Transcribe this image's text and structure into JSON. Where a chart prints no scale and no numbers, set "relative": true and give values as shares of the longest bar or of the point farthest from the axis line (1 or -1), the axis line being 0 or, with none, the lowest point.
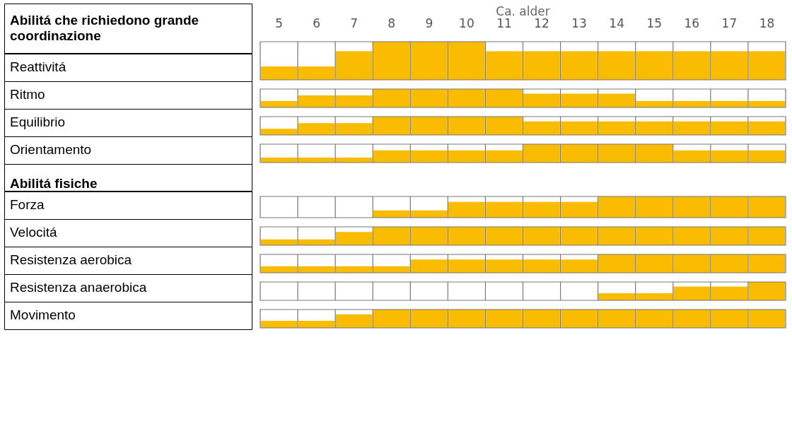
{
  "chart_data": [
    {
      "type": "bar",
      "title": "Abilitá che richiedono grande coordinazione",
      "ylabel": "Reattivitá",
      "xlabel": "Ca. alder",
      "categories": [
        "5",
        "6",
        "7",
        "8",
        "9",
        "10",
        "11",
        "12",
        "13",
        "14",
        "15",
        "16",
        "17",
        "18"
      ],
      "values": [
        0.35,
        0.35,
        0.75,
        1,
        1,
        1,
        0.75,
        0.75,
        0.75,
        0.75,
        0.75,
        0.75,
        0.75,
        0.75
      ],
      "color": "#f9bc00",
      "relative": true,
      "grid": "x",
      "tick_labels": "x"
    },
    {
      "type": "bar",
      "ylabel": "Ritmo",
      "categories": [
        "5",
        "6",
        "7",
        "8",
        "9",
        "10",
        "11",
        "12",
        "13",
        "14",
        "15",
        "16",
        "17",
        "18"
      ],
      "values": [
        0.35,
        0.65,
        0.65,
        1,
        1,
        1,
        1,
        0.75,
        0.75,
        0.75,
        0.35,
        0.35,
        0.35,
        0.35
      ],
      "color": "#f9bc00",
      "relative": true,
      "grid": "x",
      "tick_labels": false
    },
    {
      "type": "bar",
      "ylabel": "Equilibrio",
      "categories": [
        "5",
        "6",
        "7",
        "8",
        "9",
        "10",
        "11",
        "12",
        "13",
        "14",
        "15",
        "16",
        "17",
        "18"
      ],
      "values": [
        0.34,
        0.64,
        0.64,
        1,
        1,
        1,
        1,
        0.74,
        0.74,
        0.74,
        0.74,
        0.74,
        0.74,
        0.74
      ],
      "color": "#f9bc00",
      "relative": true,
      "grid": "x",
      "tick_labels": false
    },
    {
      "type": "bar",
      "ylabel": "Orientamento",
      "categories": [
        "5",
        "6",
        "7",
        "8",
        "9",
        "10",
        "11",
        "12",
        "13",
        "14",
        "15",
        "16",
        "17",
        "18"
      ],
      "values": [
        0.27,
        0.27,
        0.27,
        0.66,
        0.66,
        0.66,
        0.66,
        1,
        1,
        1,
        1,
        0.66,
        0.66,
        0.66
      ],
      "color": "#f9bc00",
      "relative": true,
      "grid": "x",
      "tick_labels": false
    },
    {
      "type": "bar",
      "annotations": [
        "Abilitá fisiche"
      ],
      "ylabel": "Forza",
      "categories": [
        "5",
        "6",
        "7",
        "8",
        "9",
        "10",
        "11",
        "12",
        "13",
        "14",
        "15",
        "16",
        "17",
        "18"
      ],
      "values": [
        0,
        0,
        0,
        0.34,
        0.34,
        0.74,
        0.74,
        0.74,
        0.74,
        1,
        1,
        1,
        1,
        1
      ],
      "color": "#f9bc00",
      "relative": true,
      "grid": "x",
      "tick_labels": false
    },
    {
      "type": "bar",
      "ylabel": "Velocitá",
      "categories": [
        "5",
        "6",
        "7",
        "8",
        "9",
        "10",
        "11",
        "12",
        "13",
        "14",
        "15",
        "16",
        "17",
        "18"
      ],
      "values": [
        0.32,
        0.32,
        0.72,
        1,
        1,
        1,
        1,
        1,
        1,
        1,
        1,
        1,
        1,
        1
      ],
      "color": "#f9bc00",
      "relative": true,
      "grid": "x",
      "tick_labels": false
    },
    {
      "type": "bar",
      "ylabel": "Resistenza aerobica",
      "categories": [
        "5",
        "6",
        "7",
        "8",
        "9",
        "10",
        "11",
        "12",
        "13",
        "14",
        "15",
        "16",
        "17",
        "18"
      ],
      "values": [
        0.36,
        0.36,
        0.36,
        0.36,
        0.72,
        0.72,
        0.72,
        0.72,
        0.72,
        1,
        1,
        1,
        1,
        1
      ],
      "color": "#f9bc00",
      "relative": true,
      "grid": "x",
      "tick_labels": false
    },
    {
      "type": "bar",
      "ylabel": "Resistenza anaerobica",
      "categories": [
        "5",
        "6",
        "7",
        "8",
        "9",
        "10",
        "11",
        "12",
        "13",
        "14",
        "15",
        "16",
        "17",
        "18"
      ],
      "values": [
        0,
        0,
        0,
        0,
        0,
        0,
        0,
        0,
        0,
        0.38,
        0.38,
        0.75,
        0.75,
        1
      ],
      "color": "#f9bc00",
      "relative": true,
      "grid": "x",
      "tick_labels": false
    },
    {
      "type": "bar",
      "ylabel": "Movimento",
      "categories": [
        "5",
        "6",
        "7",
        "8",
        "9",
        "10",
        "11",
        "12",
        "13",
        "14",
        "15",
        "16",
        "17",
        "18"
      ],
      "values": [
        0.38,
        0.38,
        0.74,
        1,
        1,
        1,
        1,
        1,
        1,
        1,
        1,
        1,
        1,
        1
      ],
      "color": "#f9bc00",
      "relative": true,
      "grid": "x",
      "tick_labels": false
    }
  ]
}
